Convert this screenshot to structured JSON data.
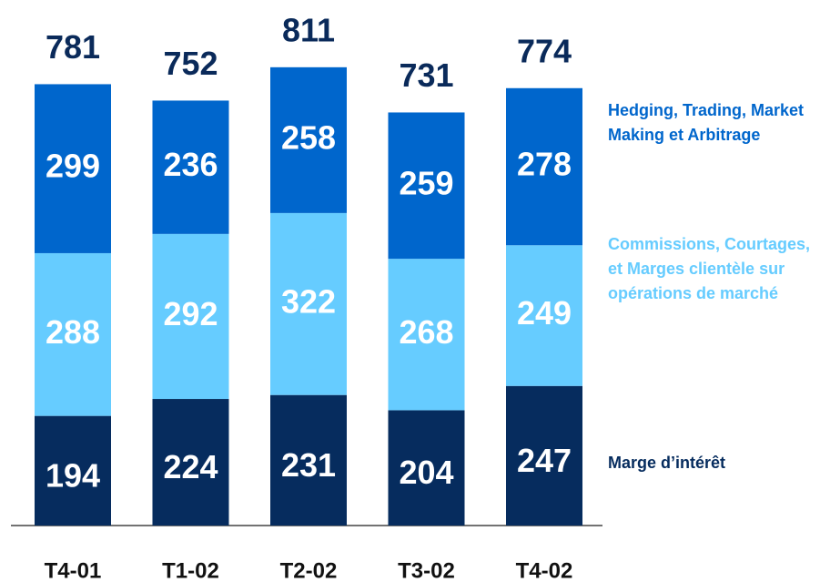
{
  "chart_data": {
    "type": "stacked_bar",
    "categories": [
      "T4-01",
      "T1-02",
      "T2-02",
      "T3-02",
      "T4-02"
    ],
    "series": [
      {
        "name": "Marge d’intérêt",
        "color": "#062c5e",
        "values": [
          194,
          224,
          231,
          204,
          247
        ]
      },
      {
        "name": "Commissions, Courtages, et Marges clientèle sur opérations de marché",
        "color": "#66ccff",
        "values": [
          288,
          292,
          322,
          268,
          249
        ]
      },
      {
        "name": "Hedging, Trading, Market Making et Arbitrage",
        "color": "#0066cc",
        "values": [
          299,
          236,
          258,
          259,
          278
        ]
      }
    ],
    "totals": [
      781,
      752,
      811,
      731,
      774
    ],
    "ylim": [
      0,
      930
    ]
  }
}
